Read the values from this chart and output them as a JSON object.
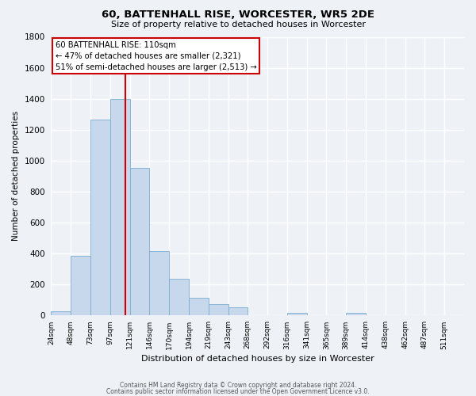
{
  "title": "60, BATTENHALL RISE, WORCESTER, WR5 2DE",
  "subtitle": "Size of property relative to detached houses in Worcester",
  "xlabel": "Distribution of detached houses by size in Worcester",
  "ylabel": "Number of detached properties",
  "bar_color": "#c8d8ec",
  "bar_edge_color": "#7aaed0",
  "bin_labels": [
    "24sqm",
    "48sqm",
    "73sqm",
    "97sqm",
    "121sqm",
    "146sqm",
    "170sqm",
    "194sqm",
    "219sqm",
    "243sqm",
    "268sqm",
    "292sqm",
    "316sqm",
    "341sqm",
    "365sqm",
    "389sqm",
    "414sqm",
    "438sqm",
    "462sqm",
    "487sqm",
    "511sqm"
  ],
  "bar_values": [
    25,
    385,
    1265,
    1400,
    950,
    415,
    235,
    110,
    70,
    50,
    0,
    0,
    15,
    0,
    0,
    15,
    0,
    0,
    0,
    0,
    0
  ],
  "ylim": [
    0,
    1800
  ],
  "yticks": [
    0,
    200,
    400,
    600,
    800,
    1000,
    1200,
    1400,
    1600,
    1800
  ],
  "vline_x": 3.78,
  "vline_color": "#cc0000",
  "annotation_title": "60 BATTENHALL RISE: 110sqm",
  "annotation_line1": "← 47% of detached houses are smaller (2,321)",
  "annotation_line2": "51% of semi-detached houses are larger (2,513) →",
  "annotation_box_color": "#ffffff",
  "annotation_box_edge_color": "#cc0000",
  "footer_line1": "Contains HM Land Registry data © Crown copyright and database right 2024.",
  "footer_line2": "Contains public sector information licensed under the Open Government Licence v3.0.",
  "background_color": "#eef2f7",
  "grid_color": "#ffffff"
}
